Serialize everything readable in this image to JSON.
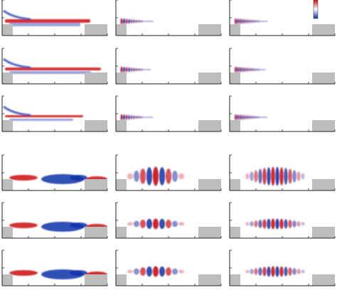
{
  "figure": {
    "panels": [
      {
        "row": 0,
        "col": 0,
        "kind": "top",
        "level": 0
      },
      {
        "row": 0,
        "col": 1,
        "kind": "top",
        "level": 1
      },
      {
        "row": 0,
        "col": 2,
        "kind": "top",
        "level": 2
      },
      {
        "row": 1,
        "col": 0,
        "kind": "top",
        "level": 0
      },
      {
        "row": 1,
        "col": 1,
        "kind": "top",
        "level": 1
      },
      {
        "row": 1,
        "col": 2,
        "kind": "top",
        "level": 2
      },
      {
        "row": 2,
        "col": 0,
        "kind": "top",
        "level": 0
      },
      {
        "row": 2,
        "col": 1,
        "kind": "top",
        "level": 1
      },
      {
        "row": 2,
        "col": 2,
        "kind": "top",
        "level": 2
      },
      {
        "row": 3,
        "col": 0,
        "kind": "bottom",
        "level": 0
      },
      {
        "row": 3,
        "col": 1,
        "kind": "bottom",
        "level": 1
      },
      {
        "row": 3,
        "col": 2,
        "kind": "bottom",
        "level": 2
      },
      {
        "row": 4,
        "col": 0,
        "kind": "bottom",
        "level": 0
      },
      {
        "row": 4,
        "col": 1,
        "kind": "bottom",
        "level": 1
      },
      {
        "row": 4,
        "col": 2,
        "kind": "bottom",
        "level": 2
      },
      {
        "row": 5,
        "col": 0,
        "kind": "bottom",
        "level": 0
      },
      {
        "row": 5,
        "col": 1,
        "kind": "bottom",
        "level": 1
      },
      {
        "row": 5,
        "col": 2,
        "kind": "bottom",
        "level": 2
      }
    ],
    "colors": {
      "positive": "#cc1111",
      "negative": "#1133aa",
      "wall": "#bdbdbd",
      "axis": "#222222"
    },
    "colorbar": {
      "colors": [
        "#cc1111",
        "#ffffff",
        "#1133aa"
      ]
    }
  }
}
